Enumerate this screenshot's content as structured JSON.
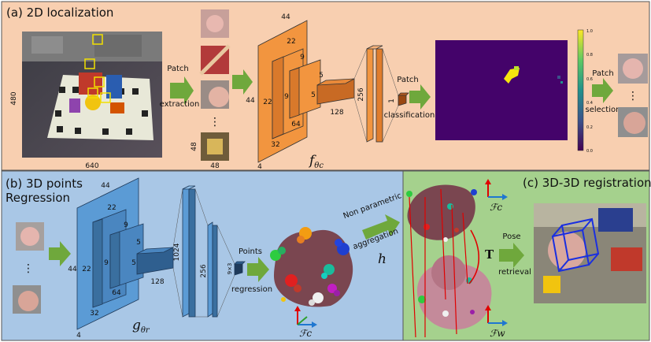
{
  "panels": {
    "a": {
      "title": "(a) 2D localization",
      "image_height": "480",
      "image_width": "640",
      "patch_extraction_top": "Patch",
      "patch_extraction_bottom": "extraction",
      "patch_size_side": "48",
      "patch_size_bottom": "48",
      "dots": "⋮",
      "cnn_dims": [
        "44",
        "44",
        "22",
        "22",
        "9",
        "9",
        "5",
        "5",
        "64",
        "128",
        "32",
        "4",
        "256",
        "1"
      ],
      "classification_top": "Patch",
      "classification_bottom": "classification",
      "function_label": "f",
      "function_sub": "θc",
      "colorbar_ticks": [
        "1.0",
        "0.8",
        "0.6",
        "0.4",
        "0.2",
        "0.0"
      ],
      "selection_top": "Patch",
      "selection_bottom": "selection"
    },
    "b": {
      "title_line1": "(b) 3D points",
      "title_line2": "Regression",
      "cnn_dims": [
        "44",
        "44",
        "22",
        "22",
        "9",
        "9",
        "5",
        "5",
        "64",
        "128",
        "32",
        "4",
        "1024",
        "256",
        "9×3"
      ],
      "regression_top": "Points",
      "regression_bottom": "regression",
      "function_label": "g",
      "function_sub": "θr",
      "frame_label": "ℱc",
      "aggregation_line1": "Non parametric",
      "aggregation_line2": "aggregation",
      "aggregation_symbol": "h"
    },
    "c": {
      "title": "(c) 3D-3D registration",
      "frame_top": "ℱc",
      "frame_bottom": "ℱw",
      "transform_symbol": "T",
      "pose_top": "Pose",
      "pose_bottom": "retrieval"
    }
  },
  "colors": {
    "panel_a_bg": "#f8cfb0",
    "panel_b_bg": "#a9c7e6",
    "panel_c_bg": "#a5d18d",
    "orange_cnn": "#f2953f",
    "blue_cnn": "#5b9bd5",
    "dark_block": "#9a4812",
    "arrow_green": "#6fa83c",
    "heatmap_bg": "#44036a",
    "heatmap_hot": "#f5e50e"
  }
}
